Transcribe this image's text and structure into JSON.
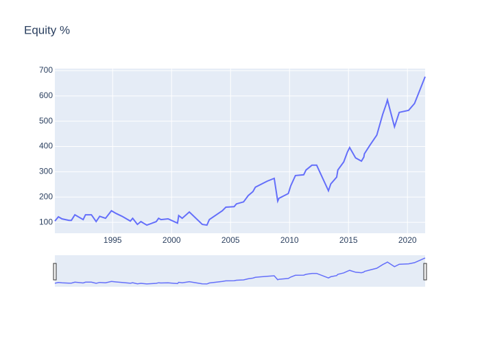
{
  "chart_data": {
    "type": "line",
    "title": "Equity %",
    "color": "#636efa",
    "grid": true,
    "range_slider": true,
    "x": [
      1990.1,
      1990.4,
      1990.7,
      1991.3,
      1991.5,
      1991.8,
      1992.5,
      1992.7,
      1993.2,
      1993.6,
      1993.9,
      1994.4,
      1994.9,
      1995.3,
      1995.8,
      1996.5,
      1996.7,
      1997.1,
      1997.4,
      1997.9,
      1998.7,
      1998.9,
      1999.1,
      1999.7,
      2000.5,
      2000.6,
      2000.9,
      2001.5,
      2002.6,
      2003.0,
      2003.2,
      2004.3,
      2004.6,
      2005.3,
      2005.5,
      2006.1,
      2006.5,
      2006.9,
      2007.1,
      2008.1,
      2008.7,
      2009.0,
      2009.1,
      2009.9,
      2010.1,
      2010.5,
      2011.2,
      2011.4,
      2011.9,
      2012.3,
      2013.3,
      2013.5,
      2014.0,
      2014.1,
      2014.6,
      2014.9,
      2015.1,
      2015.6,
      2016.1,
      2016.3,
      2016.35,
      2016.8,
      2017.4,
      2017.9,
      2018.2,
      2018.3,
      2018.9,
      2019.3,
      2020.1,
      2020.6,
      2021.5
    ],
    "values": [
      105,
      122,
      114,
      108,
      108,
      130,
      111,
      130,
      130,
      103,
      124,
      116,
      146,
      135,
      124,
      105,
      116,
      92,
      103,
      89,
      103,
      116,
      111,
      114,
      97,
      127,
      116,
      141,
      92,
      89,
      111,
      146,
      160,
      162,
      173,
      181,
      206,
      222,
      239,
      263,
      274,
      184,
      195,
      214,
      244,
      285,
      288,
      307,
      326,
      326,
      225,
      252,
      279,
      307,
      339,
      377,
      396,
      355,
      342,
      358,
      371,
      404,
      445,
      527,
      567,
      584,
      478,
      535,
      543,
      570,
      676
    ],
    "xlim": [
      1990.1,
      2021.5
    ],
    "xticks": [
      1995,
      2000,
      2005,
      2010,
      2015,
      2020
    ],
    "ylim": [
      57,
      708
    ],
    "yticks": [
      100,
      200,
      300,
      400,
      500,
      600,
      700
    ]
  }
}
